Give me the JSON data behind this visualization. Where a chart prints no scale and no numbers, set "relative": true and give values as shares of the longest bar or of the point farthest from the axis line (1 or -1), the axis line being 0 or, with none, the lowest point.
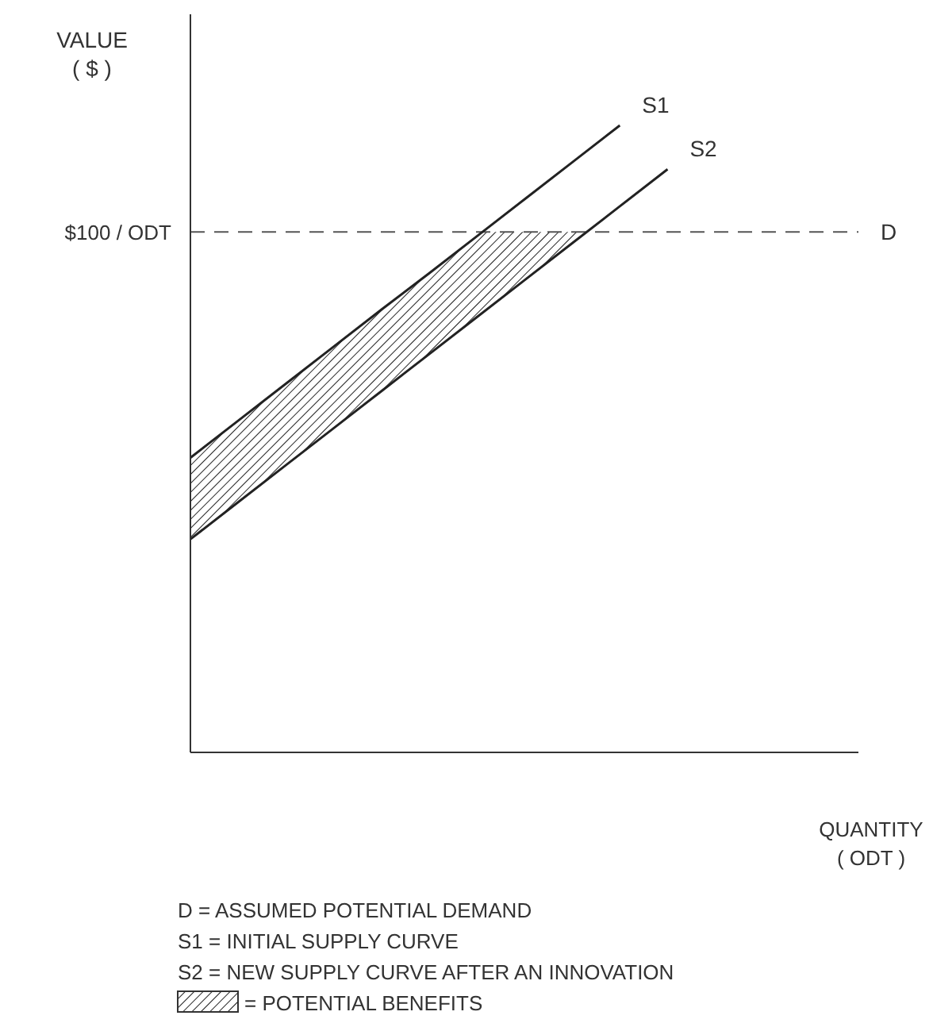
{
  "chart_data": {
    "type": "line",
    "relative": true,
    "ylabel": "VALUE\n( $ )",
    "xlabel": "QUANTITY\n( ODT )",
    "categories": [
      null,
      null,
      null,
      null,
      null,
      null,
      null,
      null,
      null,
      null,
      null,
      null,
      null,
      null,
      null
    ],
    "series": [
      {
        "name": "S1",
        "color": "#222222",
        "values": [
          0.47,
          0.529,
          0.588,
          0.647,
          0.706,
          0.764,
          0.823,
          0.882,
          0.941,
          1.0,
          null,
          null,
          null,
          null,
          null
        ]
      },
      {
        "name": "S2",
        "color": "#222222",
        "values": [
          0.34,
          0.399,
          0.458,
          0.517,
          0.576,
          0.635,
          0.694,
          0.753,
          0.812,
          0.871,
          0.93,
          null,
          null,
          null,
          null
        ]
      }
    ],
    "ref_lines": [
      {
        "axis": "y",
        "value": 0.83,
        "label": "D",
        "color": "#555555",
        "line_style": "dashed"
      }
    ],
    "annotations": [
      "$100 / ODT",
      "D = ASSUMED POTENTIAL DEMAND",
      "S1 = INITIAL SUPPLY CURVE",
      "S2 = NEW SUPPLY CURVE AFTER AN INNOVATION",
      "= POTENTIAL BENEFITS"
    ],
    "marker": "none",
    "line_style": "solid"
  }
}
